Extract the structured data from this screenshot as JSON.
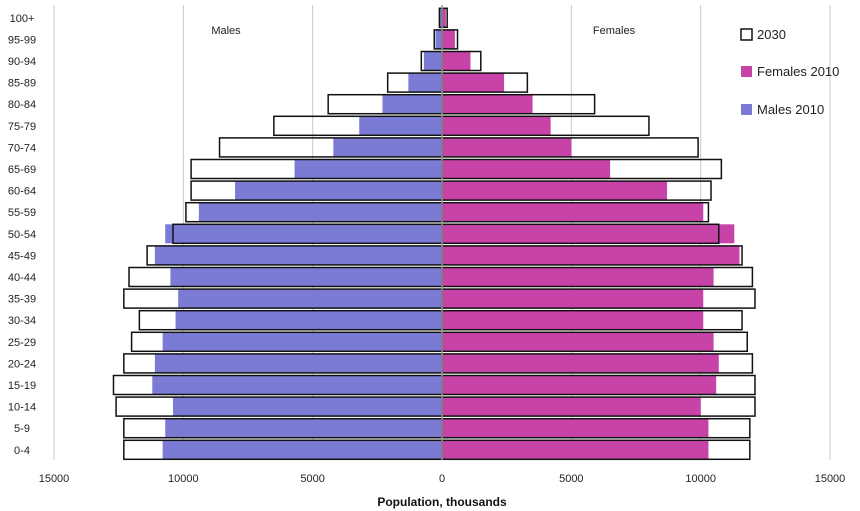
{
  "chart_data": {
    "type": "bar",
    "orientation": "horizontal-pyramid",
    "categories": [
      "0-4",
      "5-9",
      "10-14",
      "15-19",
      "20-24",
      "25-29",
      "30-34",
      "35-39",
      "40-44",
      "45-49",
      "50-54",
      "55-59",
      "60-64",
      "65-69",
      "70-74",
      "75-79",
      "80-84",
      "85-89",
      "90-94",
      "95-99",
      "100+"
    ],
    "series": [
      {
        "name": "Males 2010",
        "side": "left",
        "color": "#7b7bd5",
        "values": [
          10800,
          10700,
          10400,
          11200,
          11100,
          10800,
          10300,
          10200,
          10500,
          11100,
          10700,
          9400,
          8000,
          5700,
          4200,
          3200,
          2300,
          1300,
          700,
          250,
          80
        ]
      },
      {
        "name": "Females 2010",
        "side": "right",
        "color": "#c843a8",
        "values": [
          10300,
          10300,
          10000,
          10600,
          10700,
          10500,
          10100,
          10100,
          10500,
          11500,
          11300,
          10100,
          8700,
          6500,
          5000,
          4200,
          3500,
          2400,
          1100,
          500,
          150
        ]
      },
      {
        "name": "2030",
        "style": "outline",
        "male_values": [
          12300,
          12300,
          12600,
          12700,
          12300,
          12000,
          11700,
          12300,
          12100,
          11400,
          10400,
          9900,
          9700,
          9700,
          8600,
          6500,
          4400,
          2100,
          800,
          300,
          100
        ],
        "female_values": [
          11900,
          11900,
          12100,
          12100,
          12000,
          11800,
          11600,
          12100,
          12000,
          11600,
          10700,
          10300,
          10400,
          10800,
          9900,
          8000,
          5900,
          3300,
          1500,
          600,
          200
        ]
      }
    ],
    "xlabel": "Population, thousands",
    "xlim": [
      -15000,
      15000
    ],
    "xticks": [
      "15000",
      "10000",
      "5000",
      "0",
      "5000",
      "10000",
      "15000"
    ],
    "side_labels": {
      "left": "Males",
      "right": "Females"
    },
    "grid": "vertical",
    "legend": {
      "position": "top-right",
      "items": [
        "2030",
        "Females 2010",
        "Males 2010"
      ]
    }
  }
}
